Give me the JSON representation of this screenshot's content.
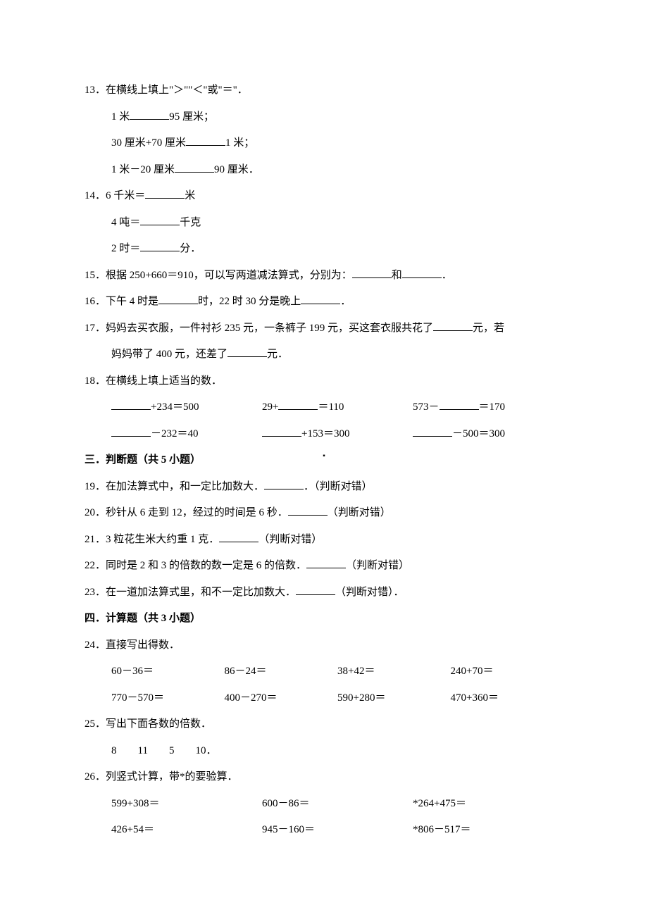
{
  "q13": {
    "stem": "13．在横线上填上\"＞\"\"＜\"或\"＝\"．",
    "l1a": "1 米",
    "l1b": "95 厘米；",
    "l2a": "30 厘米+70 厘米",
    "l2b": "1 米；",
    "l3a": "1 米－20 厘米",
    "l3b": "90 厘米．"
  },
  "q14": {
    "stem_a": "14．6 千米＝",
    "stem_b": "米",
    "l2a": "4 吨＝",
    "l2b": "千克",
    "l3a": "2 时＝",
    "l3b": "分．"
  },
  "q15": {
    "a": "15．根据 250+660＝910，可以写两道减法算式，分别为：",
    "b": "和",
    "c": "．"
  },
  "q16": {
    "a": "16．下午 4 时是",
    "b": "时，22 时 30 分是晚上",
    "c": "．"
  },
  "q17": {
    "a": "17．妈妈去买衣服，一件衬衫 235 元，一条裤子 199 元，买这套衣服共花了",
    "b": "元，若",
    "c": "妈妈带了 400 元，还差了",
    "d": "元．"
  },
  "q18": {
    "stem": "18．在横线上填上适当的数．",
    "r1c1b": "+234＝500",
    "r1c2a": "29+",
    "r1c2b": "＝110",
    "r1c3a": "573－",
    "r1c3b": "＝170",
    "r2c1b": "－232＝40",
    "r2c2b": "+153＝300",
    "r2c3b": "－500＝300"
  },
  "sec3": "三．判断题（共 5 小题）",
  "q19": {
    "a": "19．在加法算式中，和一定比加数大．",
    "b": "．（判断对错）"
  },
  "q20": {
    "a": "20．秒针从 6 走到 12，经过的时间是 6 秒．",
    "b": "（判断对错）"
  },
  "q21": {
    "a": "21．3 粒花生米大约重 1 克．",
    "b": "（判断对错）"
  },
  "q22": {
    "a": "22．同时是 2 和 3 的倍数的数一定是 6 的倍数．",
    "b": "（判断对错）"
  },
  "q23": {
    "a": "23．在一道加法算式里，和不一定比加数大．",
    "b": "（判断对错）．"
  },
  "sec4": "四．计算题（共 3 小题）",
  "q24": {
    "stem": "24．直接写出得数．",
    "r1": [
      "60－36＝",
      "86－24＝",
      "38+42＝",
      "240+70＝"
    ],
    "r2": [
      "770－570＝",
      "400－270＝",
      "590+280＝",
      "470+360＝"
    ]
  },
  "q25": {
    "stem": "25．写出下面各数的倍数．",
    "nums": "8　　11　　5　　10．"
  },
  "q26": {
    "stem": "26．列竖式计算，带*的要验算．",
    "r1": [
      "599+308＝",
      "600－86＝",
      "*264+475＝"
    ],
    "r2": [
      "426+54＝",
      "945－160＝",
      "*806－517＝"
    ]
  }
}
